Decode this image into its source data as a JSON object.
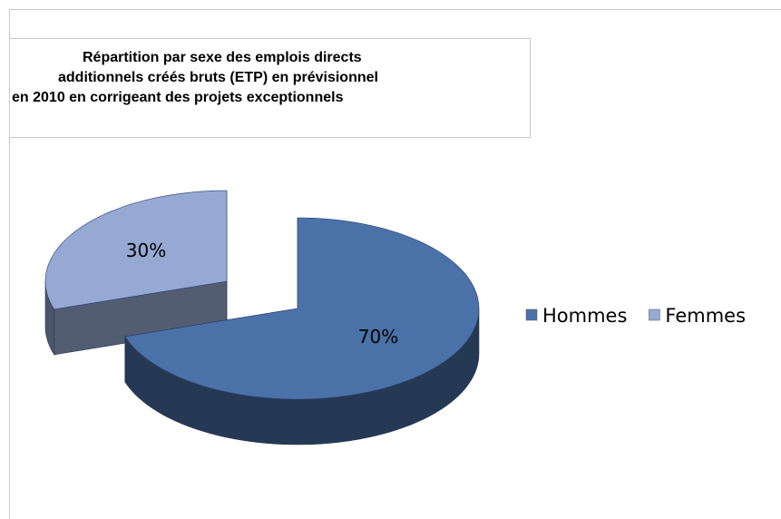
{
  "chart_data": {
    "type": "pie",
    "title": [
      "Répartition par sexe des emplois directs",
      "additionnels créés bruts (ETP) en prévisionnel",
      "en 2010 en corrigeant des projets exceptionnels"
    ],
    "categories": [
      "Hommes",
      "Femmes"
    ],
    "values": [
      70,
      30
    ],
    "value_labels": [
      "70%",
      "30%"
    ],
    "colors": [
      "#4a72a8",
      "#95a9d3"
    ],
    "legend": "right"
  }
}
